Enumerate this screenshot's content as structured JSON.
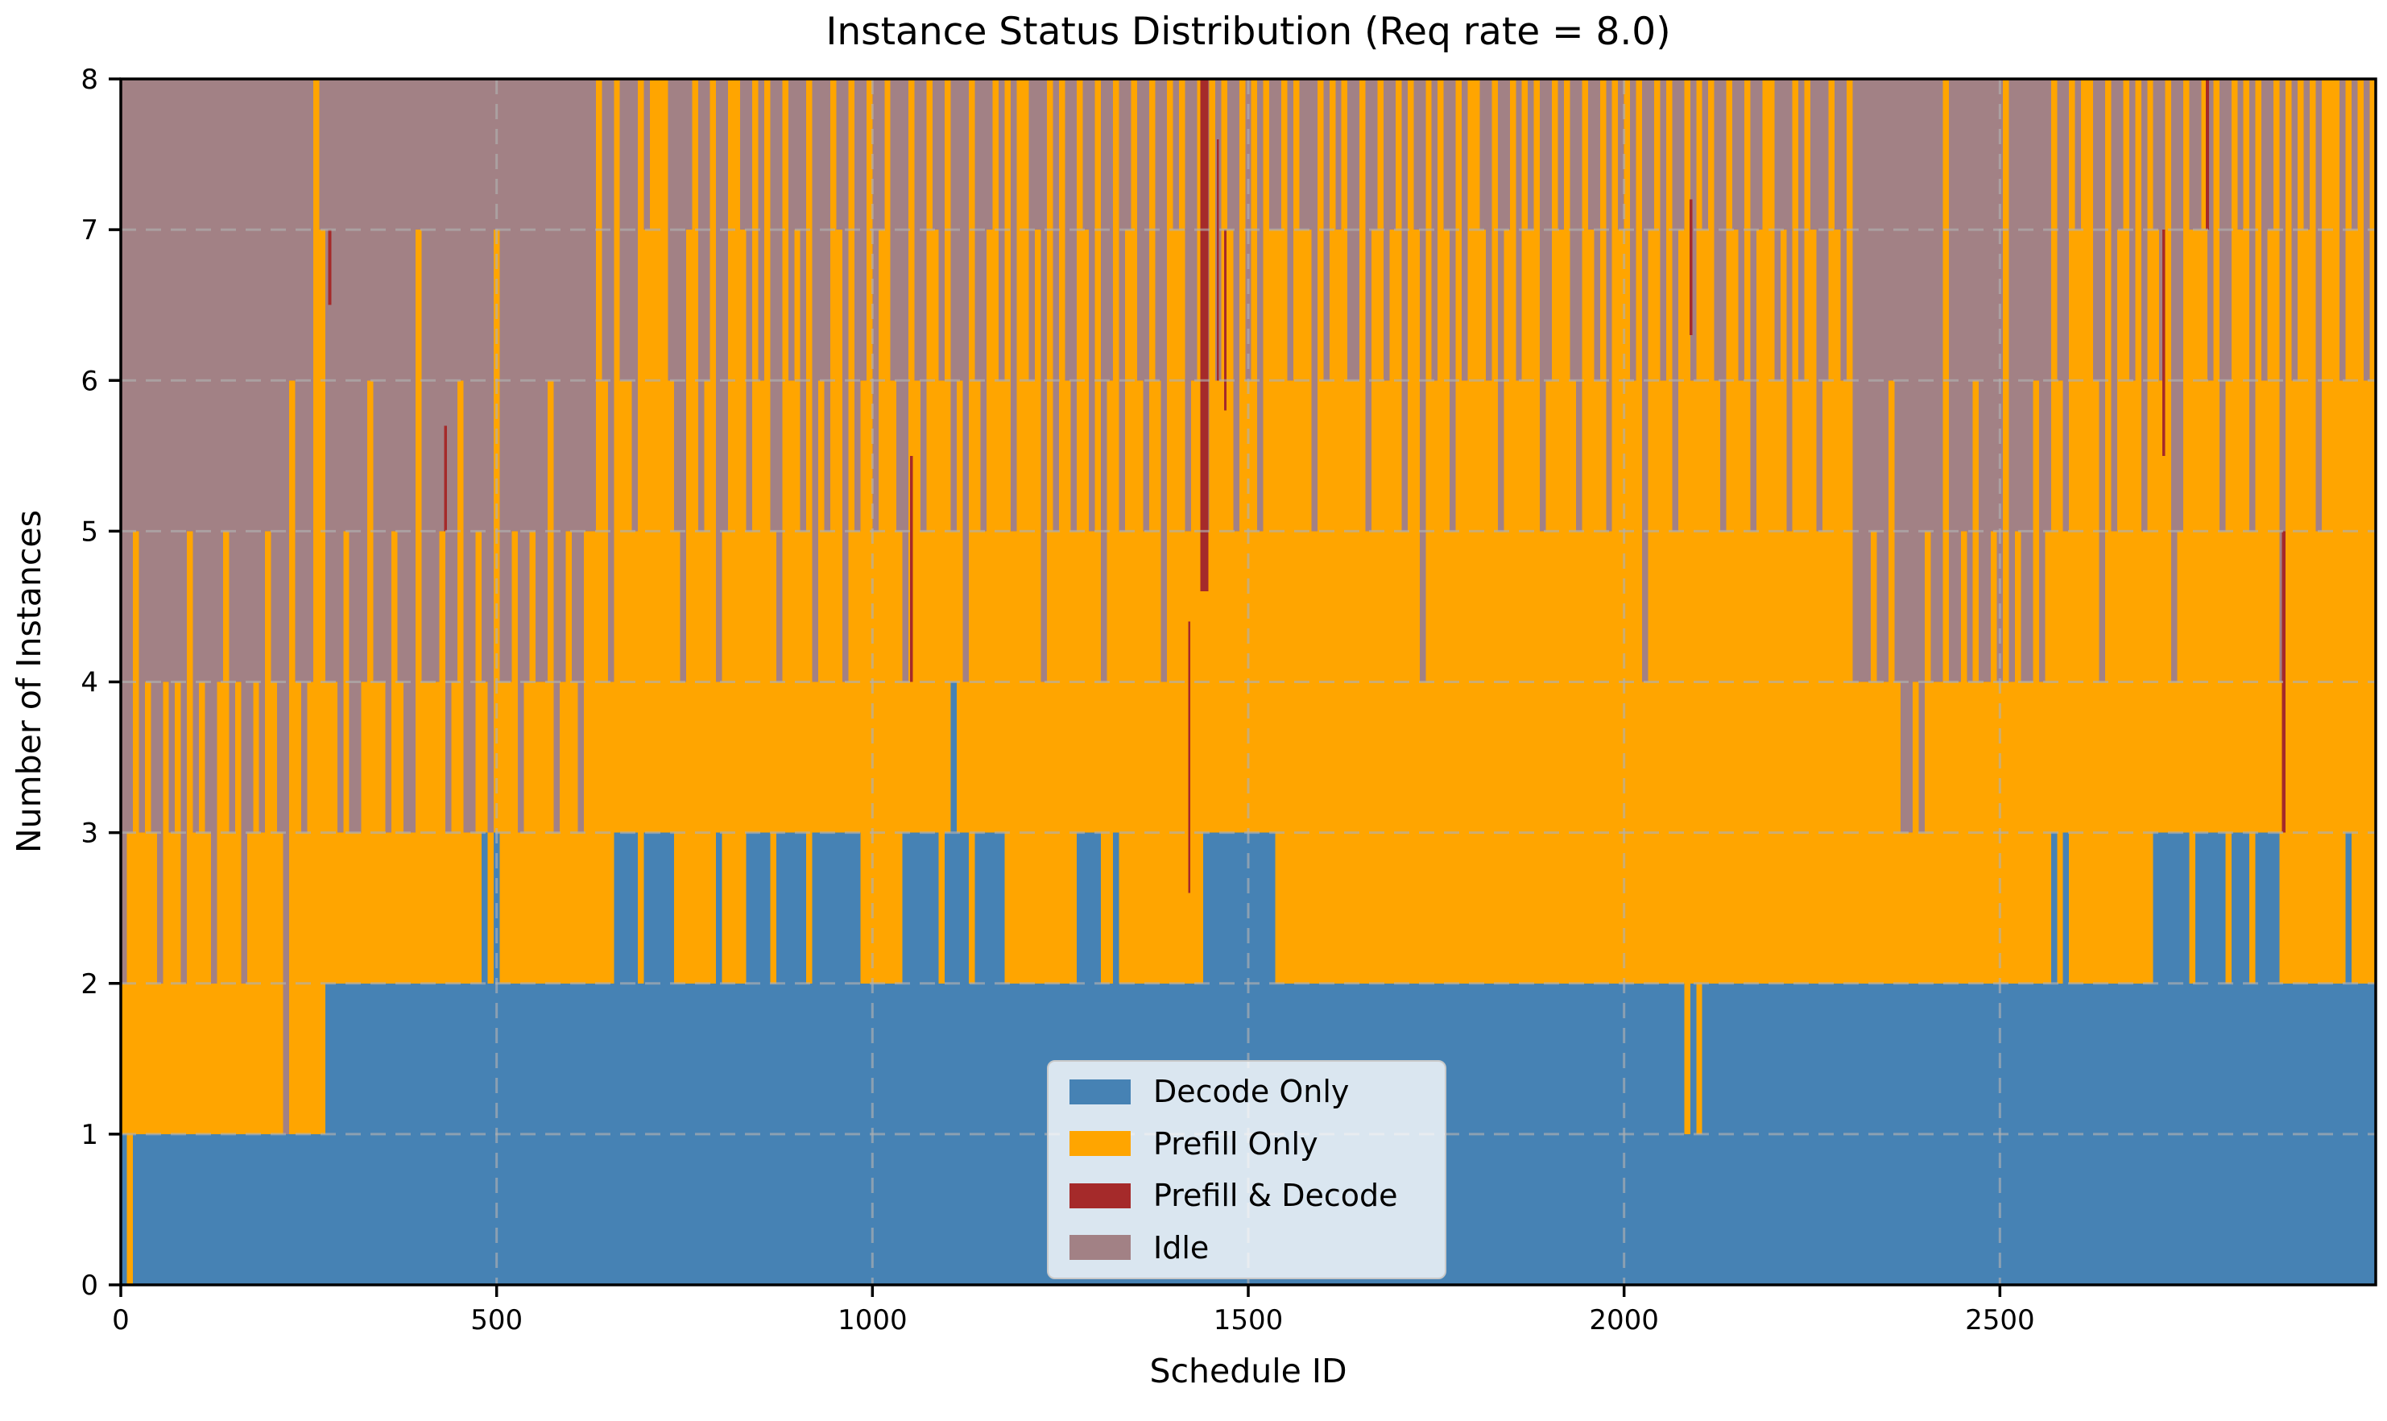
{
  "title": "Instance Status Distribution (Req rate = 8.0)",
  "xlabel": "Schedule ID",
  "ylabel": "Number of Instances",
  "legend": {
    "items": [
      {
        "label": "Decode Only",
        "color_key": "decode_only"
      },
      {
        "label": "Prefill Only",
        "color_key": "prefill_only"
      },
      {
        "label": "Prefill & Decode",
        "color_key": "prefill_decode"
      },
      {
        "label": "Idle",
        "color_key": "idle"
      }
    ],
    "position": "lower center"
  },
  "chart_data": {
    "type": "area",
    "stacked": true,
    "title": "Instance Status Distribution (Req rate = 8.0)",
    "xlabel": "Schedule ID",
    "ylabel": "Number of Instances",
    "series_names": [
      "Decode Only",
      "Prefill Only",
      "Prefill & Decode",
      "Idle"
    ],
    "colors": {
      "decode_only": "#4682B4",
      "prefill_only": "#FFA500",
      "prefill_decode": "#A52A2A",
      "idle": "#A28185"
    },
    "xlim": [
      0,
      3000
    ],
    "ylim": [
      0,
      8
    ],
    "xticks": [
      0,
      500,
      1000,
      1500,
      2000,
      2500
    ],
    "yticks": [
      0,
      1,
      2,
      3,
      4,
      5,
      6,
      7,
      8
    ],
    "grid": true,
    "total_instances": 8,
    "x_step_per_point": 8,
    "n_points": 375,
    "encoding_note": "decode_runs / busy_runs are run-length encoded as [count,value] per 8-schedule-ID column. decode = Decode Only count; prefill = busy - decode; idle = 8 - busy. red_events are [schedule_id, y_bottom, y_top, width_in_ids] overlays for Prefill & Decode.",
    "decode_runs": [
      [
        1,
        1
      ],
      [
        1,
        0
      ],
      [
        32,
        1
      ],
      [
        26,
        2
      ],
      [
        1,
        3
      ],
      [
        1,
        2
      ],
      [
        1,
        3
      ],
      [
        19,
        2
      ],
      [
        4,
        3
      ],
      [
        1,
        2
      ],
      [
        5,
        3
      ],
      [
        7,
        2
      ],
      [
        1,
        3
      ],
      [
        4,
        2
      ],
      [
        4,
        3
      ],
      [
        1,
        2
      ],
      [
        5,
        3
      ],
      [
        1,
        2
      ],
      [
        8,
        3
      ],
      [
        7,
        2
      ],
      [
        6,
        3
      ],
      [
        1,
        2
      ],
      [
        1,
        3
      ],
      [
        1,
        4
      ],
      [
        2,
        3
      ],
      [
        1,
        2
      ],
      [
        5,
        3
      ],
      [
        12,
        2
      ],
      [
        4,
        3
      ],
      [
        2,
        2
      ],
      [
        1,
        3
      ],
      [
        14,
        2
      ],
      [
        12,
        3
      ],
      [
        68,
        2
      ],
      [
        1,
        1
      ],
      [
        1,
        2
      ],
      [
        1,
        1
      ],
      [
        58,
        2
      ],
      [
        1,
        3
      ],
      [
        1,
        2
      ],
      [
        1,
        3
      ],
      [
        14,
        2
      ],
      [
        6,
        3
      ],
      [
        1,
        2
      ],
      [
        5,
        3
      ],
      [
        1,
        2
      ],
      [
        3,
        3
      ],
      [
        1,
        2
      ],
      [
        4,
        3
      ],
      [
        11,
        2
      ],
      [
        1,
        3
      ],
      [
        4,
        2
      ]
    ],
    "busy_runs": [
      [
        1,
        2
      ],
      [
        1,
        3
      ],
      [
        1,
        5
      ],
      [
        1,
        3
      ],
      [
        1,
        4
      ],
      [
        1,
        3
      ],
      [
        1,
        2
      ],
      [
        1,
        4
      ],
      [
        1,
        3
      ],
      [
        1,
        4
      ],
      [
        1,
        2
      ],
      [
        1,
        5
      ],
      [
        1,
        3
      ],
      [
        1,
        4
      ],
      [
        1,
        3
      ],
      [
        1,
        2
      ],
      [
        1,
        4
      ],
      [
        1,
        5
      ],
      [
        1,
        3
      ],
      [
        1,
        4
      ],
      [
        1,
        2
      ],
      [
        1,
        3
      ],
      [
        1,
        4
      ],
      [
        1,
        3
      ],
      [
        1,
        5
      ],
      [
        1,
        4
      ],
      [
        1,
        3
      ],
      [
        1,
        1
      ],
      [
        1,
        6
      ],
      [
        1,
        4
      ],
      [
        1,
        3
      ],
      [
        1,
        4
      ],
      [
        1,
        8
      ],
      [
        1,
        7
      ],
      [
        2,
        4
      ],
      [
        1,
        3
      ],
      [
        1,
        5
      ],
      [
        2,
        3
      ],
      [
        1,
        4
      ],
      [
        1,
        6
      ],
      [
        2,
        4
      ],
      [
        1,
        3
      ],
      [
        1,
        5
      ],
      [
        1,
        4
      ],
      [
        2,
        3
      ],
      [
        1,
        7
      ],
      [
        1,
        4
      ],
      [
        2,
        4
      ],
      [
        1,
        5
      ],
      [
        1,
        3
      ],
      [
        1,
        4
      ],
      [
        1,
        6
      ],
      [
        2,
        3
      ],
      [
        1,
        5
      ],
      [
        1,
        4
      ],
      [
        1,
        3
      ],
      [
        1,
        7
      ],
      [
        2,
        4
      ],
      [
        1,
        5
      ],
      [
        1,
        3
      ],
      [
        1,
        4
      ],
      [
        1,
        5
      ],
      [
        2,
        4
      ],
      [
        1,
        6
      ],
      [
        1,
        3
      ],
      [
        1,
        4
      ],
      [
        1,
        5
      ],
      [
        1,
        4
      ],
      [
        1,
        3
      ],
      [
        1,
        5
      ],
      [
        1,
        5
      ],
      [
        1,
        8
      ],
      [
        1,
        6
      ],
      [
        1,
        4
      ],
      [
        1,
        8
      ],
      [
        2,
        6
      ],
      [
        1,
        5
      ],
      [
        1,
        8
      ],
      [
        1,
        7
      ],
      [
        3,
        8
      ],
      [
        1,
        6
      ],
      [
        1,
        5
      ],
      [
        1,
        4
      ],
      [
        1,
        7
      ],
      [
        1,
        8
      ],
      [
        1,
        5
      ],
      [
        1,
        6
      ],
      [
        1,
        8
      ],
      [
        1,
        4
      ],
      [
        1,
        5
      ],
      [
        2,
        8
      ],
      [
        1,
        7
      ],
      [
        1,
        5
      ],
      [
        1,
        8
      ],
      [
        1,
        6
      ],
      [
        1,
        8
      ],
      [
        1,
        5
      ],
      [
        1,
        4
      ],
      [
        1,
        8
      ],
      [
        1,
        6
      ],
      [
        1,
        7
      ],
      [
        1,
        5
      ],
      [
        1,
        8
      ],
      [
        1,
        4
      ],
      [
        1,
        6
      ],
      [
        1,
        5
      ],
      [
        1,
        8
      ],
      [
        1,
        7
      ],
      [
        1,
        4
      ],
      [
        1,
        8
      ],
      [
        1,
        5
      ],
      [
        1,
        6
      ],
      [
        1,
        8
      ],
      [
        1,
        5
      ],
      [
        1,
        7
      ],
      [
        1,
        8
      ],
      [
        1,
        6
      ],
      [
        1,
        5
      ],
      [
        1,
        4
      ],
      [
        1,
        8
      ],
      [
        1,
        6
      ],
      [
        1,
        5
      ],
      [
        1,
        8
      ],
      [
        1,
        7
      ],
      [
        1,
        6
      ],
      [
        1,
        8
      ],
      [
        1,
        5
      ],
      [
        1,
        6
      ],
      [
        1,
        4
      ],
      [
        1,
        8
      ],
      [
        1,
        6
      ],
      [
        1,
        5
      ],
      [
        1,
        7
      ],
      [
        1,
        8
      ],
      [
        1,
        6
      ],
      [
        1,
        8
      ],
      [
        1,
        5
      ],
      [
        2,
        8
      ],
      [
        1,
        6
      ],
      [
        1,
        7
      ],
      [
        1,
        4
      ],
      [
        1,
        8
      ],
      [
        1,
        5
      ],
      [
        1,
        8
      ],
      [
        1,
        6
      ],
      [
        1,
        5
      ],
      [
        1,
        8
      ],
      [
        1,
        7
      ],
      [
        1,
        5
      ],
      [
        1,
        8
      ],
      [
        1,
        4
      ],
      [
        1,
        6
      ],
      [
        1,
        8
      ],
      [
        1,
        5
      ],
      [
        1,
        7
      ],
      [
        1,
        8
      ],
      [
        1,
        6
      ],
      [
        1,
        5
      ],
      [
        1,
        8
      ],
      [
        1,
        6
      ],
      [
        1,
        4
      ],
      [
        1,
        8
      ],
      [
        1,
        7
      ],
      [
        1,
        8
      ],
      [
        1,
        5
      ],
      [
        1,
        6
      ],
      [
        1,
        8
      ],
      [
        1,
        5
      ],
      [
        1,
        8
      ],
      [
        1,
        6
      ],
      [
        1,
        8
      ],
      [
        1,
        7
      ],
      [
        1,
        5
      ],
      [
        1,
        8
      ],
      [
        1,
        6
      ],
      [
        1,
        8
      ],
      [
        1,
        5
      ],
      [
        1,
        8
      ],
      [
        1,
        7
      ],
      [
        1,
        7
      ],
      [
        1,
        8
      ],
      [
        1,
        6
      ],
      [
        1,
        8
      ],
      [
        2,
        7
      ],
      [
        1,
        5
      ],
      [
        1,
        8
      ],
      [
        1,
        6
      ],
      [
        1,
        8
      ],
      [
        1,
        7
      ],
      [
        1,
        8
      ],
      [
        2,
        6
      ],
      [
        1,
        8
      ],
      [
        1,
        5
      ],
      [
        1,
        7
      ],
      [
        1,
        8
      ],
      [
        1,
        6
      ],
      [
        1,
        7
      ],
      [
        1,
        8
      ],
      [
        1,
        5
      ],
      [
        1,
        8
      ],
      [
        1,
        7
      ],
      [
        1,
        4
      ],
      [
        1,
        8
      ],
      [
        1,
        6
      ],
      [
        1,
        8
      ],
      [
        1,
        7
      ],
      [
        1,
        5
      ],
      [
        1,
        8
      ],
      [
        1,
        6
      ],
      [
        2,
        8
      ],
      [
        1,
        7
      ],
      [
        1,
        6
      ],
      [
        1,
        8
      ],
      [
        1,
        5
      ],
      [
        1,
        7
      ],
      [
        1,
        8
      ],
      [
        1,
        6
      ],
      [
        1,
        8
      ],
      [
        1,
        7
      ],
      [
        1,
        8
      ],
      [
        1,
        5
      ],
      [
        1,
        6
      ],
      [
        1,
        8
      ],
      [
        1,
        7
      ],
      [
        1,
        8
      ],
      [
        1,
        6
      ],
      [
        1,
        5
      ],
      [
        1,
        8
      ],
      [
        1,
        7
      ],
      [
        1,
        6
      ],
      [
        1,
        8
      ],
      [
        1,
        5
      ],
      [
        1,
        8
      ],
      [
        1,
        7
      ],
      [
        1,
        8
      ],
      [
        1,
        6
      ],
      [
        1,
        8
      ],
      [
        1,
        4
      ],
      [
        1,
        7
      ],
      [
        1,
        8
      ],
      [
        1,
        6
      ],
      [
        1,
        8
      ],
      [
        1,
        5
      ],
      [
        1,
        7
      ],
      [
        1,
        8
      ],
      [
        1,
        6
      ],
      [
        1,
        8
      ],
      [
        1,
        7
      ],
      [
        1,
        8
      ],
      [
        1,
        6
      ],
      [
        1,
        5
      ],
      [
        1,
        8
      ],
      [
        1,
        7
      ],
      [
        1,
        6
      ],
      [
        1,
        8
      ],
      [
        1,
        5
      ],
      [
        1,
        7
      ],
      [
        2,
        8
      ],
      [
        1,
        6
      ],
      [
        1,
        7
      ],
      [
        1,
        5
      ],
      [
        1,
        8
      ],
      [
        1,
        6
      ],
      [
        1,
        8
      ],
      [
        1,
        7
      ],
      [
        1,
        5
      ],
      [
        1,
        6
      ],
      [
        1,
        8
      ],
      [
        1,
        7
      ],
      [
        1,
        6
      ],
      [
        1,
        8
      ],
      [
        3,
        4
      ],
      [
        1,
        5
      ],
      [
        2,
        4
      ],
      [
        1,
        6
      ],
      [
        1,
        4
      ],
      [
        2,
        3
      ],
      [
        1,
        4
      ],
      [
        1,
        3
      ],
      [
        1,
        5
      ],
      [
        2,
        4
      ],
      [
        1,
        8
      ],
      [
        2,
        4
      ],
      [
        1,
        5
      ],
      [
        1,
        4
      ],
      [
        1,
        6
      ],
      [
        2,
        4
      ],
      [
        1,
        5
      ],
      [
        1,
        4
      ],
      [
        1,
        8
      ],
      [
        1,
        4
      ],
      [
        1,
        5
      ],
      [
        2,
        4
      ],
      [
        1,
        6
      ],
      [
        1,
        4
      ],
      [
        1,
        5
      ],
      [
        1,
        8
      ],
      [
        1,
        6
      ],
      [
        1,
        5
      ],
      [
        1,
        8
      ],
      [
        1,
        7
      ],
      [
        2,
        8
      ],
      [
        1,
        6
      ],
      [
        1,
        4
      ],
      [
        1,
        8
      ],
      [
        1,
        5
      ],
      [
        1,
        7
      ],
      [
        1,
        8
      ],
      [
        1,
        6
      ],
      [
        1,
        8
      ],
      [
        1,
        5
      ],
      [
        1,
        8
      ],
      [
        1,
        7
      ],
      [
        1,
        6
      ],
      [
        1,
        8
      ],
      [
        1,
        4
      ],
      [
        1,
        5
      ],
      [
        1,
        8
      ],
      [
        2,
        7
      ],
      [
        1,
        8
      ],
      [
        1,
        6
      ],
      [
        1,
        8
      ],
      [
        1,
        5
      ],
      [
        1,
        6
      ],
      [
        1,
        8
      ],
      [
        1,
        7
      ],
      [
        1,
        8
      ],
      [
        1,
        5
      ],
      [
        1,
        8
      ],
      [
        1,
        6
      ],
      [
        1,
        7
      ],
      [
        1,
        8
      ],
      [
        1,
        4
      ],
      [
        1,
        8
      ],
      [
        1,
        6
      ],
      [
        1,
        8
      ],
      [
        1,
        7
      ],
      [
        1,
        8
      ],
      [
        1,
        5
      ],
      [
        1,
        8
      ],
      [
        2,
        8
      ],
      [
        1,
        6
      ],
      [
        1,
        8
      ],
      [
        1,
        7
      ],
      [
        1,
        8
      ],
      [
        1,
        6
      ],
      [
        1,
        8
      ]
    ],
    "red_events": [
      [
        276,
        6.5,
        7.0,
        4
      ],
      [
        430,
        5.0,
        5.7,
        4
      ],
      [
        1050,
        4.0,
        5.5,
        4
      ],
      [
        1420,
        2.6,
        4.4,
        3
      ],
      [
        1436,
        4.6,
        8.0,
        11
      ],
      [
        1458,
        6.0,
        7.6,
        3
      ],
      [
        1468,
        5.8,
        7.0,
        3
      ],
      [
        2087,
        6.3,
        7.2,
        4
      ],
      [
        2716,
        5.5,
        7.0,
        4
      ],
      [
        2774,
        7.0,
        8.0,
        4
      ],
      [
        2875,
        3.0,
        5.0,
        5
      ]
    ]
  }
}
